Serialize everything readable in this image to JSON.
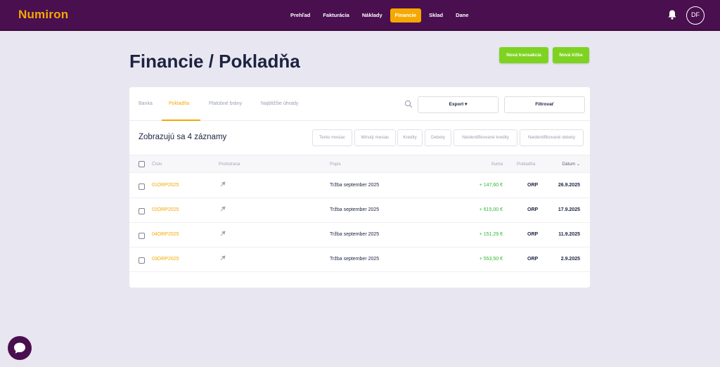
{
  "app": {
    "logo": "Numiron"
  },
  "nav": {
    "items": [
      {
        "label": "Prehľad",
        "active": false
      },
      {
        "label": "Fakturácia",
        "active": false
      },
      {
        "label": "Náklady",
        "active": false
      },
      {
        "label": "Financie",
        "active": true
      },
      {
        "label": "Sklad",
        "active": false
      },
      {
        "label": "Dane",
        "active": false
      }
    ]
  },
  "user": {
    "initials": "DF"
  },
  "page": {
    "title": "Financie / Pokladňa",
    "new_transaction_label": "Nová transakcia",
    "new_sale_label": "Nová tržba"
  },
  "tabs": [
    {
      "label": "Banka",
      "active": false
    },
    {
      "label": "Pokladňa",
      "active": true
    },
    {
      "label": "Platobné brány",
      "active": false
    },
    {
      "label": "Najbližšie úhrady",
      "active": false
    }
  ],
  "toolbar": {
    "export_label": "Export ▾",
    "filter_label": "Filtrovať"
  },
  "summary": {
    "count_text": "Zobrazujú sa 4 záznamy"
  },
  "filters": [
    "Tento mesiac",
    "Minulý mesiac",
    "Kredity",
    "Debety",
    "Neidentifikované kredity",
    "Neidentifikované debety"
  ],
  "table": {
    "columns": {
      "number": "Číslo",
      "counterparty": "Protistrana",
      "description": "Popis",
      "amount": "Suma",
      "register": "Pokladňa",
      "date": "Dátum ⌄"
    },
    "rows": [
      {
        "number": "01ORP2025",
        "description": "Tržba september 2025",
        "amount": "+ 147,60 €",
        "register": "ORP",
        "date": "26.9.2025"
      },
      {
        "number": "02ORP2025",
        "description": "Tržba september 2025",
        "amount": "+ 615,00 €",
        "register": "ORP",
        "date": "17.9.2025"
      },
      {
        "number": "04ORP2025",
        "description": "Tržba september 2025",
        "amount": "+ 151,29 €",
        "register": "ORP",
        "date": "11.9.2025"
      },
      {
        "number": "03ORP2025",
        "description": "Tržba september 2025",
        "amount": "+ 553,50 €",
        "register": "ORP",
        "date": "2.9.2025"
      }
    ]
  },
  "colors": {
    "brand": "#4a0f4f",
    "accent": "#f5a800",
    "success": "#7ed321",
    "positive_amount": "#2eb82e"
  },
  "icons": [
    "bell-icon",
    "search-icon",
    "pin-icon",
    "chat-icon"
  ]
}
